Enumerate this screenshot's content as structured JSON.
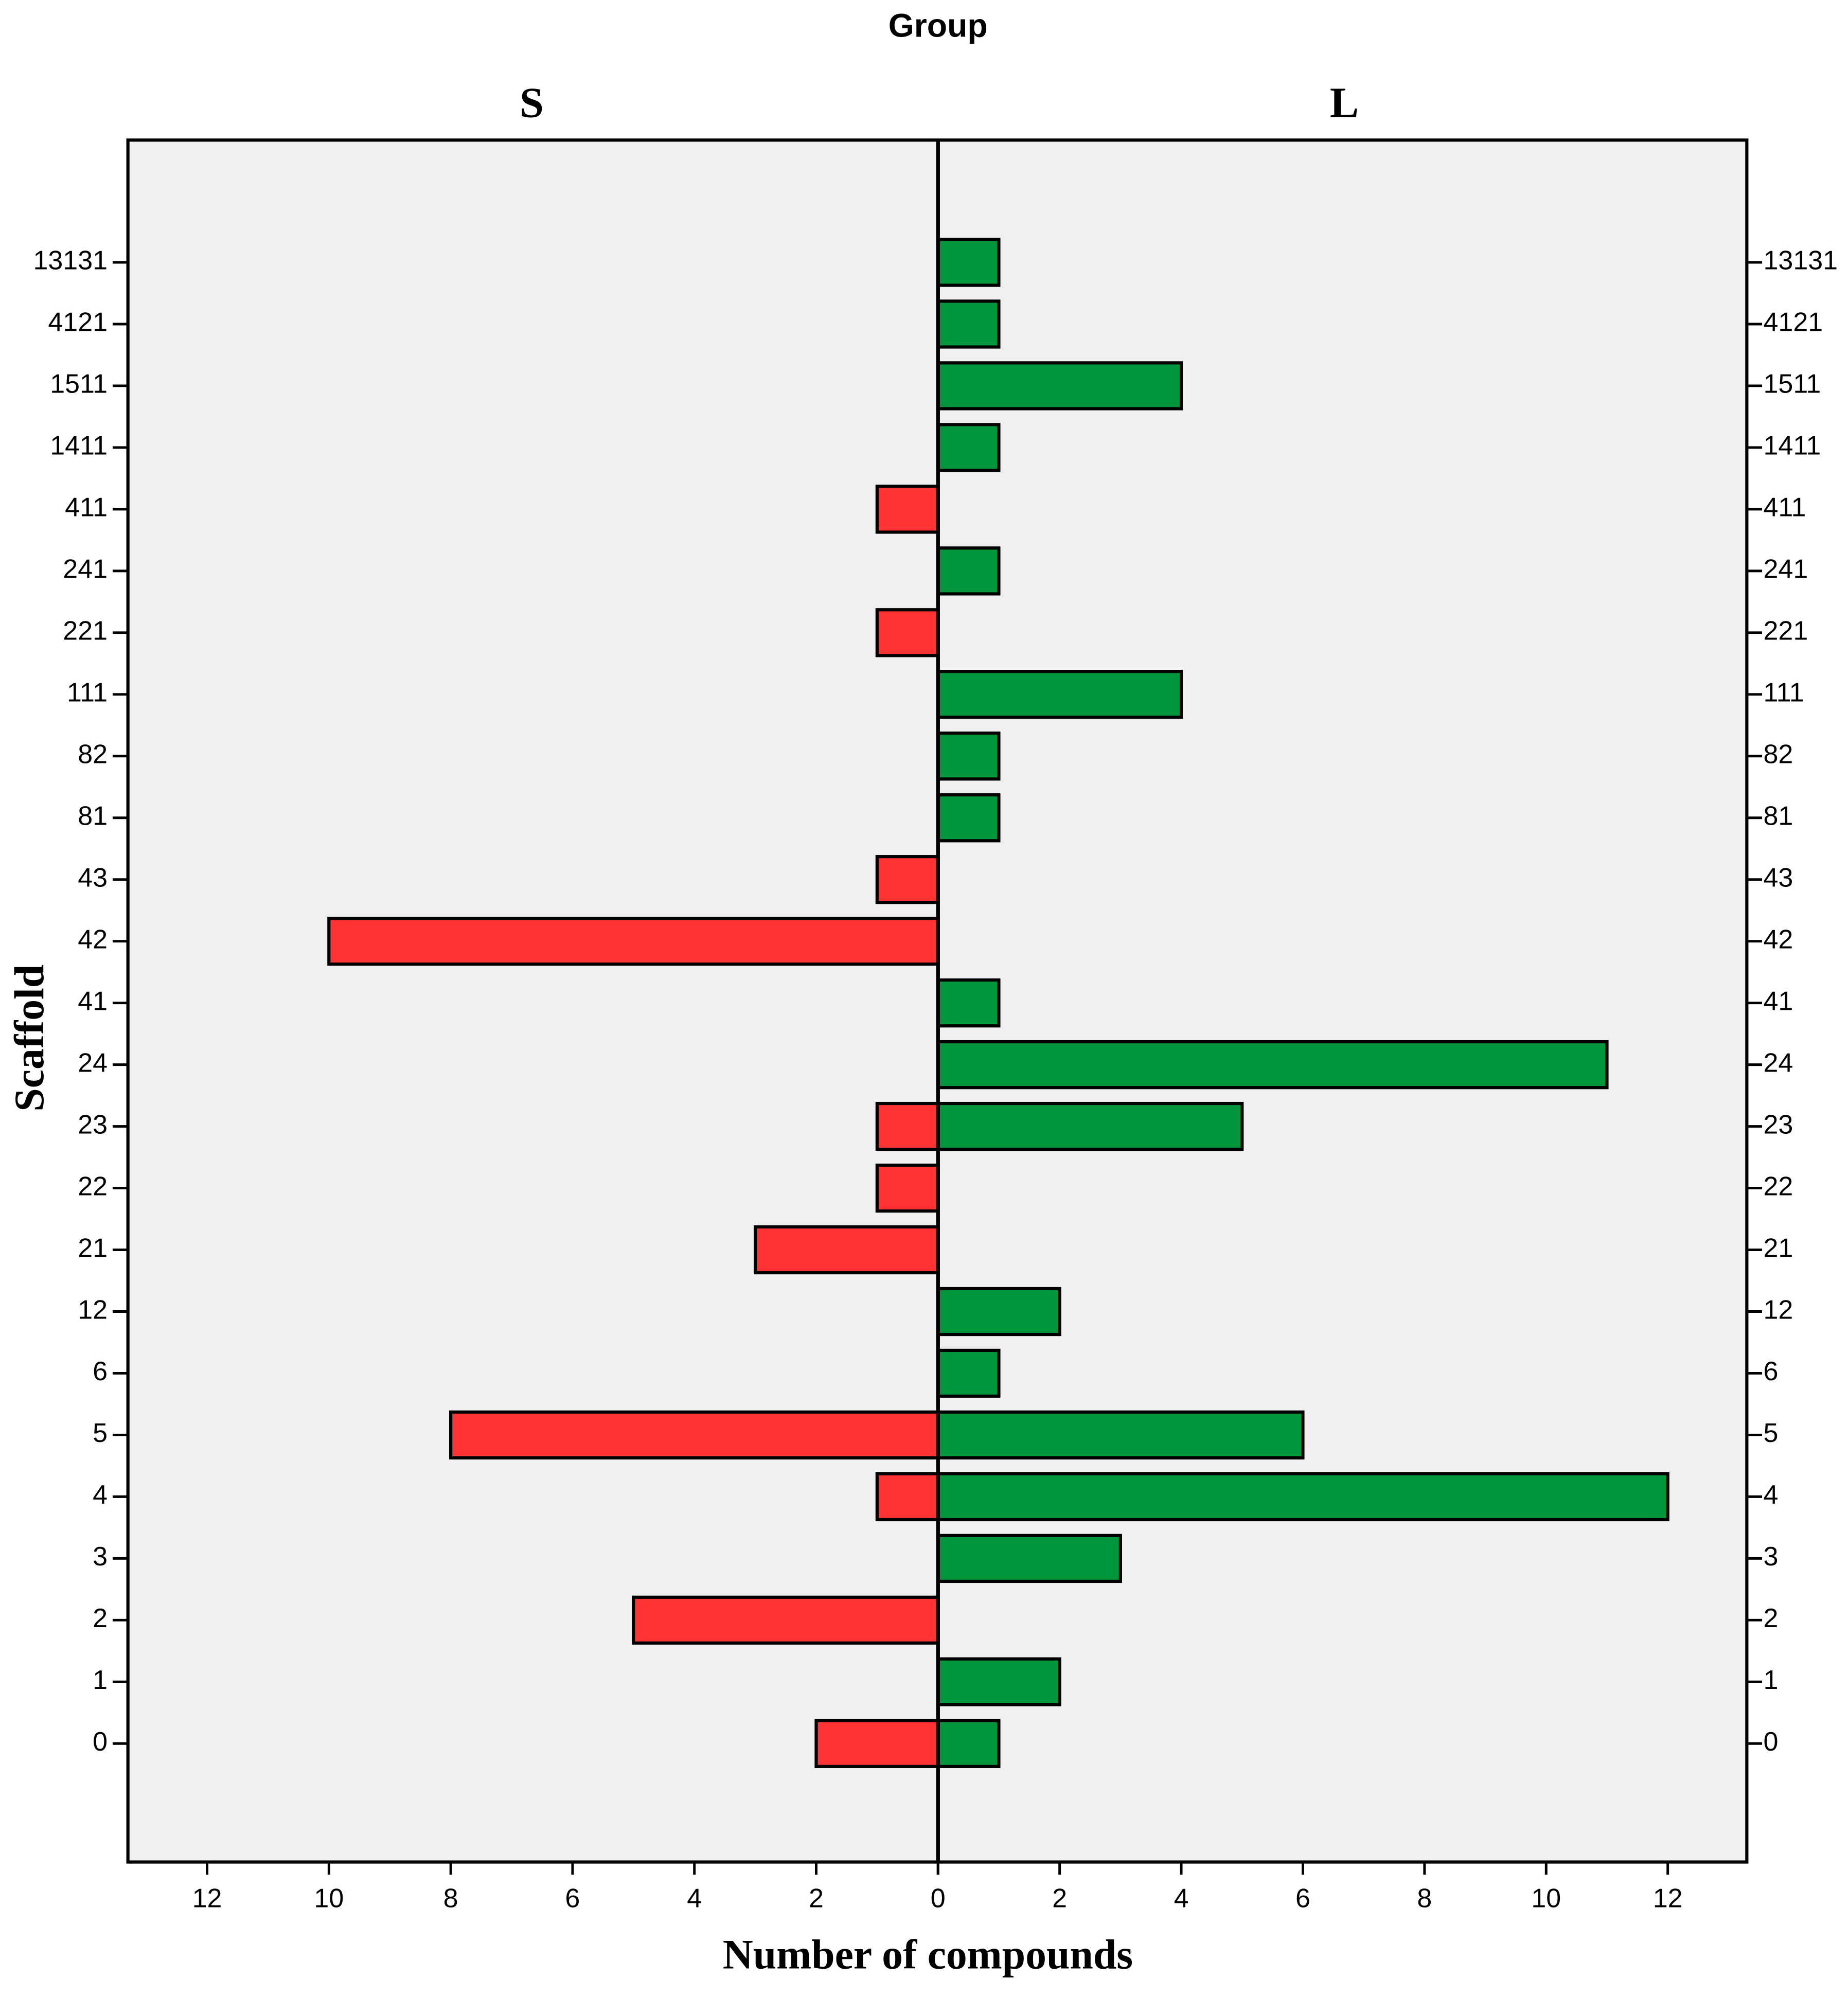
{
  "chart_data": {
    "type": "pyramid",
    "title": "Group",
    "xlabel": "Number of compounds",
    "ylabel": "Scaffold",
    "categories": [
      "0",
      "1",
      "2",
      "3",
      "4",
      "5",
      "6",
      "12",
      "21",
      "22",
      "23",
      "24",
      "41",
      "42",
      "43",
      "81",
      "82",
      "111",
      "221",
      "241",
      "411",
      "1411",
      "1511",
      "4121",
      "13131"
    ],
    "series": [
      {
        "name": "S",
        "color": "#ff3333",
        "values": [
          2,
          0,
          5,
          0,
          1,
          8,
          0,
          0,
          3,
          1,
          1,
          0,
          0,
          10,
          1,
          0,
          0,
          0,
          1,
          0,
          1,
          0,
          0,
          0,
          0
        ]
      },
      {
        "name": "L",
        "color": "#00963c",
        "values": [
          1,
          2,
          0,
          3,
          12,
          6,
          1,
          2,
          0,
          0,
          5,
          11,
          1,
          0,
          0,
          1,
          1,
          4,
          0,
          1,
          0,
          1,
          4,
          1,
          1
        ]
      }
    ],
    "xlim": [
      0,
      13.3
    ],
    "xticks": [
      0,
      2,
      4,
      6,
      8,
      10,
      12
    ]
  }
}
